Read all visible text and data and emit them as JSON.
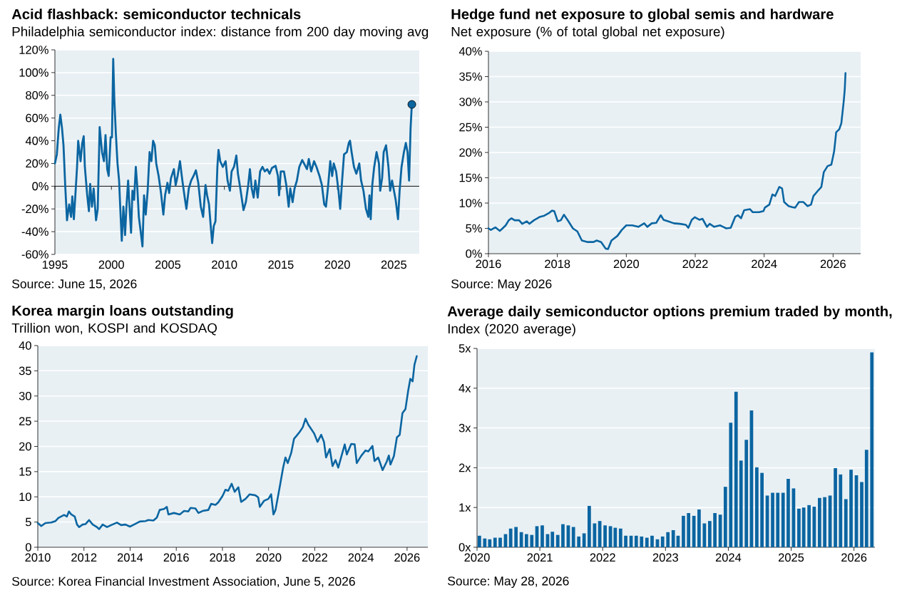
{
  "chart_data": [
    {
      "type": "line",
      "title": "Acid flashback: semiconductor technicals",
      "subtitle": "Philadelphia semiconductor index: distance from 200 day moving avg",
      "annotations": [
        "Source: June 15, 2026"
      ],
      "xlim": [
        1995,
        2027.25
      ],
      "xticks": [
        1995,
        2000,
        2005,
        2010,
        2015,
        2020,
        2025
      ],
      "ylim": [
        -60,
        120
      ],
      "yticks": [
        {
          "value": -60,
          "label": "-60%"
        },
        {
          "value": -40,
          "label": "-40%"
        },
        {
          "value": -20,
          "label": "-20%"
        },
        {
          "value": 0,
          "label": "0%"
        },
        {
          "value": 20,
          "label": "20%"
        },
        {
          "value": 40,
          "label": "40%"
        },
        {
          "value": 60,
          "label": "60%"
        },
        {
          "value": 80,
          "label": "80%"
        },
        {
          "value": 100,
          "label": "100%"
        },
        {
          "value": 120,
          "label": "120%"
        }
      ],
      "grid": "y",
      "ref_lines": [
        {
          "axis": "y",
          "value": 0,
          "color": "#000000"
        }
      ],
      "series": [
        {
          "color": "#0b65a1",
          "x": [
            1995.0,
            1995.17,
            1995.34,
            1995.48,
            1995.63,
            1995.76,
            1995.91,
            1996.07,
            1996.26,
            1996.43,
            1996.54,
            1996.68,
            1996.81,
            1996.96,
            1997.06,
            1997.27,
            1997.42,
            1997.55,
            1997.65,
            1997.86,
            1998.01,
            1998.12,
            1998.28,
            1998.43,
            1998.64,
            1998.79,
            1998.96,
            1999.17,
            1999.34,
            1999.48,
            1999.63,
            1999.76,
            1999.93,
            2000.05,
            2000.16,
            2000.26,
            2000.39,
            2000.54,
            2000.68,
            2000.81,
            2000.92,
            2001.06,
            2001.21,
            2001.32,
            2001.48,
            2001.59,
            2001.74,
            2001.86,
            2002.01,
            2002.16,
            2002.28,
            2002.43,
            2002.58,
            2002.75,
            2002.89,
            2003.04,
            2003.21,
            2003.38,
            2003.54,
            2003.69,
            2003.84,
            2003.97,
            2004.18,
            2004.39,
            2004.6,
            2004.75,
            2004.96,
            2005.11,
            2005.27,
            2005.53,
            2005.69,
            2005.86,
            2006.07,
            2006.28,
            2006.49,
            2006.64,
            2006.85,
            2007.06,
            2007.27,
            2007.48,
            2007.69,
            2007.91,
            2008.12,
            2008.33,
            2008.47,
            2008.64,
            2008.79,
            2008.92,
            2009.06,
            2009.21,
            2009.38,
            2009.48,
            2009.63,
            2009.86,
            2010.11,
            2010.28,
            2010.49,
            2010.64,
            2010.85,
            2011.06,
            2011.2,
            2011.41,
            2011.69,
            2011.9,
            2012.11,
            2012.26,
            2012.42,
            2012.59,
            2012.74,
            2012.95,
            2013.16,
            2013.37,
            2013.58,
            2013.79,
            2014.0,
            2014.21,
            2014.53,
            2014.74,
            2014.84,
            2014.99,
            2015.27,
            2015.48,
            2015.69,
            2015.83,
            2016.04,
            2016.21,
            2016.42,
            2016.63,
            2016.89,
            2017.05,
            2017.31,
            2017.47,
            2017.68,
            2017.94,
            2018.15,
            2018.42,
            2018.63,
            2018.84,
            2018.99,
            2019.16,
            2019.37,
            2019.54,
            2019.68,
            2019.89,
            2020.1,
            2020.25,
            2020.42,
            2020.59,
            2020.84,
            2021.01,
            2021.12,
            2021.26,
            2021.47,
            2021.68,
            2021.94,
            2022.1,
            2022.31,
            2022.53,
            2022.74,
            2022.84,
            2022.95,
            2023.09,
            2023.26,
            2023.47,
            2023.68,
            2023.79,
            2023.96,
            2024.1,
            2024.31,
            2024.52,
            2024.67,
            2024.84,
            2025.01,
            2025.16,
            2025.37,
            2025.51,
            2025.68,
            2025.89,
            2026.06,
            2026.21,
            2026.35,
            2026.48,
            2026.59
          ],
          "values": [
            20,
            28,
            51,
            63,
            51,
            36,
            1,
            -30,
            -16,
            -27,
            -9,
            -29,
            -8,
            17,
            40,
            22,
            38,
            44,
            17,
            -8,
            -22,
            2,
            -18,
            -2,
            -30,
            -20,
            52,
            30,
            22,
            45,
            15,
            9,
            43,
            43,
            112,
            76,
            47,
            20,
            5,
            -25,
            -48,
            -18,
            -43,
            -20,
            5,
            -16,
            -41,
            -4,
            -12,
            17,
            1,
            -27,
            -39,
            -53,
            -8,
            -25,
            -4,
            30,
            22,
            40,
            36,
            20,
            9,
            -6,
            -25,
            -8,
            3,
            -6,
            7,
            15,
            1,
            9,
            22,
            5,
            -10,
            -20,
            -2,
            5,
            9,
            14,
            3,
            -18,
            -27,
            1,
            -8,
            -16,
            -35,
            -50,
            -35,
            -31,
            17,
            32,
            22,
            17,
            22,
            5,
            -4,
            13,
            17,
            27,
            11,
            -2,
            -21,
            -14,
            1,
            15,
            -2,
            -10,
            5,
            -10,
            13,
            17,
            13,
            15,
            11,
            16,
            18,
            9,
            -8,
            13,
            13,
            1,
            -18,
            -2,
            -14,
            -2,
            5,
            17,
            23,
            20,
            15,
            24,
            13,
            22,
            17,
            9,
            1,
            -16,
            -18,
            -2,
            22,
            9,
            20,
            13,
            -4,
            -20,
            5,
            28,
            30,
            38,
            40,
            30,
            17,
            11,
            20,
            5,
            -4,
            -20,
            -27,
            -8,
            -29,
            1,
            17,
            30,
            20,
            -4,
            7,
            30,
            36,
            17,
            -4,
            5,
            -4,
            -12,
            -29,
            -4,
            17,
            30,
            38,
            30,
            5,
            51,
            72
          ]
        },
        {
          "type": "scatter",
          "marker": "circle",
          "color": "#0b65a1",
          "x": [
            2026.59
          ],
          "values": [
            72
          ]
        }
      ]
    },
    {
      "type": "line",
      "title": "Hedge fund net exposure to global semis and hardware",
      "subtitle": "Net exposure (% of total global net exposure)",
      "annotations": [
        "Source: May 2026"
      ],
      "xlim": [
        2016,
        2026.8
      ],
      "xticks": [
        2016,
        2018,
        2020,
        2022,
        2024,
        2026
      ],
      "ylim": [
        0,
        40
      ],
      "yticks": [
        {
          "value": 0,
          "label": "0%"
        },
        {
          "value": 5,
          "label": "5%"
        },
        {
          "value": 10,
          "label": "10%"
        },
        {
          "value": 15,
          "label": "15%"
        },
        {
          "value": 20,
          "label": "20%"
        },
        {
          "value": 25,
          "label": "25%"
        },
        {
          "value": 30,
          "label": "30%"
        },
        {
          "value": 35,
          "label": "35%"
        },
        {
          "value": 40,
          "label": "40%"
        }
      ],
      "grid": "y",
      "color": "#0b65a1",
      "x": [
        2016.0,
        2016.07,
        2016.2,
        2016.33,
        2016.41,
        2016.5,
        2016.59,
        2016.67,
        2016.76,
        2016.89,
        2016.98,
        2017.11,
        2017.19,
        2017.32,
        2017.5,
        2017.62,
        2017.75,
        2017.84,
        2017.91,
        2018.01,
        2018.1,
        2018.19,
        2018.32,
        2018.45,
        2018.58,
        2018.71,
        2018.88,
        2019.05,
        2019.14,
        2019.27,
        2019.4,
        2019.47,
        2019.57,
        2019.74,
        2019.87,
        2020.0,
        2020.17,
        2020.35,
        2020.52,
        2020.61,
        2020.74,
        2020.87,
        2021.0,
        2021.08,
        2021.21,
        2021.38,
        2021.56,
        2021.73,
        2021.8,
        2021.9,
        2021.99,
        2022.12,
        2022.21,
        2022.34,
        2022.42,
        2022.55,
        2022.72,
        2022.81,
        2022.9,
        2023.03,
        2023.16,
        2023.24,
        2023.33,
        2023.42,
        2023.59,
        2023.67,
        2023.85,
        2023.98,
        2024.02,
        2024.15,
        2024.24,
        2024.32,
        2024.44,
        2024.52,
        2024.58,
        2024.71,
        2024.82,
        2024.9,
        2025.01,
        2025.14,
        2025.26,
        2025.36,
        2025.43,
        2025.58,
        2025.66,
        2025.73,
        2025.84,
        2025.95,
        2026.03,
        2026.09,
        2026.18,
        2026.24,
        2026.31,
        2026.34,
        2026.36
      ],
      "values": [
        5.0,
        4.7,
        5.2,
        4.5,
        5.0,
        5.6,
        6.6,
        7.0,
        6.6,
        6.6,
        5.9,
        6.4,
        5.9,
        6.6,
        7.3,
        7.5,
        8.0,
        8.5,
        8.4,
        6.4,
        6.6,
        7.7,
        6.4,
        5.0,
        4.4,
        2.6,
        2.3,
        2.3,
        2.6,
        2.3,
        1.0,
        0.9,
        2.6,
        3.5,
        4.7,
        5.6,
        5.6,
        5.3,
        6.0,
        5.3,
        6.0,
        6.1,
        7.6,
        6.7,
        6.4,
        6.0,
        5.9,
        5.7,
        5.1,
        6.7,
        7.2,
        6.7,
        6.9,
        5.3,
        5.9,
        5.3,
        5.6,
        5.3,
        5.0,
        5.1,
        7.3,
        7.6,
        7.0,
        8.6,
        8.8,
        8.2,
        8.2,
        8.4,
        9.1,
        9.7,
        11.7,
        11.4,
        13.2,
        12.9,
        10.2,
        9.4,
        9.2,
        9.1,
        10.2,
        10.2,
        9.4,
        9.7,
        11.4,
        12.6,
        13.2,
        16.1,
        17.3,
        17.6,
        20.2,
        24.0,
        24.6,
        25.8,
        30.2,
        32.6,
        35.7
      ]
    },
    {
      "type": "line",
      "title": "Korea margin loans outstanding",
      "subtitle": "Trillion won, KOSPI and KOSDAQ",
      "annotations": [
        "Source: Korea Financial Investment Association, June 5, 2026"
      ],
      "xlim": [
        2010,
        2026.9
      ],
      "xticks": [
        2010,
        2012,
        2014,
        2016,
        2018,
        2020,
        2022,
        2024,
        2026
      ],
      "ylim": [
        0,
        40
      ],
      "yticks": [
        0,
        5,
        10,
        15,
        20,
        25,
        30,
        35,
        40
      ],
      "grid": "y",
      "color": "#0b65a1",
      "x": [
        2010.0,
        2010.15,
        2010.33,
        2010.58,
        2010.77,
        2010.89,
        2011.01,
        2011.14,
        2011.26,
        2011.35,
        2011.45,
        2011.6,
        2011.7,
        2011.79,
        2011.94,
        2012.07,
        2012.22,
        2012.38,
        2012.56,
        2012.66,
        2012.81,
        2013.0,
        2013.18,
        2013.43,
        2013.61,
        2013.8,
        2013.99,
        2014.17,
        2014.42,
        2014.67,
        2014.79,
        2015.01,
        2015.16,
        2015.28,
        2015.47,
        2015.59,
        2015.66,
        2015.9,
        2016.15,
        2016.34,
        2016.52,
        2016.62,
        2016.83,
        2016.96,
        2017.14,
        2017.39,
        2017.51,
        2017.7,
        2017.82,
        2018.01,
        2018.13,
        2018.25,
        2018.4,
        2018.53,
        2018.69,
        2018.81,
        2019.0,
        2019.18,
        2019.43,
        2019.55,
        2019.62,
        2019.8,
        2019.99,
        2020.11,
        2020.21,
        2020.3,
        2020.48,
        2020.63,
        2020.73,
        2020.83,
        2020.98,
        2021.1,
        2021.23,
        2021.35,
        2021.48,
        2021.6,
        2021.72,
        2021.84,
        2021.97,
        2022.12,
        2022.28,
        2022.4,
        2022.49,
        2022.65,
        2022.77,
        2022.9,
        2023.02,
        2023.14,
        2023.3,
        2023.39,
        2023.58,
        2023.73,
        2023.82,
        2024.01,
        2024.2,
        2024.32,
        2024.5,
        2024.59,
        2024.75,
        2024.94,
        2025.12,
        2025.21,
        2025.28,
        2025.43,
        2025.56,
        2025.68,
        2025.8,
        2025.93,
        2026.05,
        2026.14,
        2026.24,
        2026.32,
        2026.42
      ],
      "values": [
        4.8,
        4.2,
        4.8,
        4.9,
        5.2,
        5.8,
        6.1,
        6.4,
        6.1,
        7.1,
        6.5,
        6.1,
        4.5,
        4.0,
        4.5,
        4.6,
        5.4,
        4.5,
        4.0,
        3.6,
        4.5,
        4.0,
        4.4,
        4.9,
        4.4,
        4.5,
        4.1,
        4.5,
        5.1,
        5.2,
        5.4,
        5.3,
        5.9,
        7.4,
        7.6,
        8.0,
        6.5,
        6.8,
        6.5,
        7.2,
        7.1,
        7.8,
        7.7,
        6.8,
        7.2,
        7.4,
        8.6,
        8.4,
        8.9,
        10.2,
        11.4,
        11.2,
        12.6,
        11.0,
        11.9,
        9.0,
        9.6,
        10.5,
        10.3,
        9.9,
        8.0,
        9.2,
        9.6,
        10.5,
        6.5,
        7.4,
        11.9,
        15.8,
        17.8,
        16.7,
        18.7,
        21.5,
        22.2,
        22.9,
        23.8,
        25.5,
        24.3,
        23.5,
        22.6,
        20.9,
        22.3,
        20.9,
        17.8,
        19.5,
        16.1,
        17.3,
        15.8,
        17.8,
        20.4,
        18.4,
        20.5,
        20.4,
        16.7,
        18.1,
        19.2,
        19.0,
        20.1,
        17.1,
        17.8,
        15.3,
        17.0,
        18.2,
        16.4,
        18.1,
        21.8,
        22.3,
        26.6,
        27.4,
        31.1,
        33.4,
        32.9,
        36.2,
        37.9
      ]
    },
    {
      "type": "bar",
      "title": "Average daily semiconductor options premium traded by month,",
      "subtitle": "Index (2020 average)",
      "annotations": [
        "Source: May 28, 2026"
      ],
      "xlim": [
        "2020-01",
        "2026-05"
      ],
      "xticks": [
        "2020",
        "2021",
        "2022",
        "2023",
        "2024",
        "2025",
        "2026"
      ],
      "ylim": [
        0,
        5
      ],
      "yticks": [
        {
          "value": 0,
          "label": "0x"
        },
        {
          "value": 1,
          "label": "1x"
        },
        {
          "value": 2,
          "label": "2x"
        },
        {
          "value": 3,
          "label": "3x"
        },
        {
          "value": 4,
          "label": "4x"
        },
        {
          "value": 5,
          "label": "5x"
        }
      ],
      "grid": "y",
      "color": "#0b65a1",
      "x": [
        "2020-01-15",
        "2020-02-15",
        "2020-03-15",
        "2020-04-15",
        "2020-05-15",
        "2020-06-15",
        "2020-07-15",
        "2020-08-15",
        "2020-09-15",
        "2020-10-15",
        "2020-11-15",
        "2020-12-15",
        "2021-01-15",
        "2021-02-15",
        "2021-03-15",
        "2021-04-15",
        "2021-05-15",
        "2021-06-15",
        "2021-07-15",
        "2021-08-15",
        "2021-09-15",
        "2021-10-15",
        "2021-11-15",
        "2021-12-15",
        "2022-01-15",
        "2022-02-15",
        "2022-03-15",
        "2022-04-15",
        "2022-05-15",
        "2022-06-15",
        "2022-07-15",
        "2022-08-15",
        "2022-09-15",
        "2022-10-15",
        "2022-11-15",
        "2022-12-15",
        "2023-01-15",
        "2023-02-15",
        "2023-03-15",
        "2023-04-15",
        "2023-05-15",
        "2023-06-15",
        "2023-07-15",
        "2023-08-15",
        "2023-09-15",
        "2023-10-15",
        "2023-11-15",
        "2023-12-15",
        "2024-01-15",
        "2024-02-15",
        "2024-03-15",
        "2024-04-15",
        "2024-05-15",
        "2024-06-15",
        "2024-07-15",
        "2024-08-15",
        "2024-09-15",
        "2024-10-15",
        "2024-11-15",
        "2024-12-15",
        "2025-01-15",
        "2025-02-15",
        "2025-03-15",
        "2025-04-15",
        "2025-05-15",
        "2025-06-15",
        "2025-07-15",
        "2025-08-15",
        "2025-09-15",
        "2025-10-15",
        "2025-11-15",
        "2025-12-15",
        "2026-01-15",
        "2026-02-15",
        "2026-03-15",
        "2026-04-15"
      ],
      "values": [
        0.29,
        0.22,
        0.2,
        0.24,
        0.24,
        0.33,
        0.47,
        0.51,
        0.38,
        0.33,
        0.31,
        0.53,
        0.55,
        0.33,
        0.39,
        0.31,
        0.58,
        0.55,
        0.51,
        0.27,
        0.35,
        1.04,
        0.6,
        0.66,
        0.55,
        0.53,
        0.49,
        0.47,
        0.29,
        0.29,
        0.29,
        0.27,
        0.24,
        0.29,
        0.2,
        0.27,
        0.38,
        0.43,
        0.29,
        0.79,
        0.86,
        0.79,
        0.95,
        0.6,
        0.66,
        0.86,
        0.82,
        1.52,
        3.13,
        3.91,
        2.18,
        2.7,
        3.44,
        2.01,
        1.87,
        1.3,
        1.37,
        1.37,
        1.37,
        1.72,
        1.48,
        0.97,
        1.0,
        1.06,
        1.02,
        1.24,
        1.26,
        1.3,
        1.99,
        1.83,
        1.21,
        1.95,
        1.81,
        1.64,
        2.45,
        4.9
      ]
    }
  ]
}
